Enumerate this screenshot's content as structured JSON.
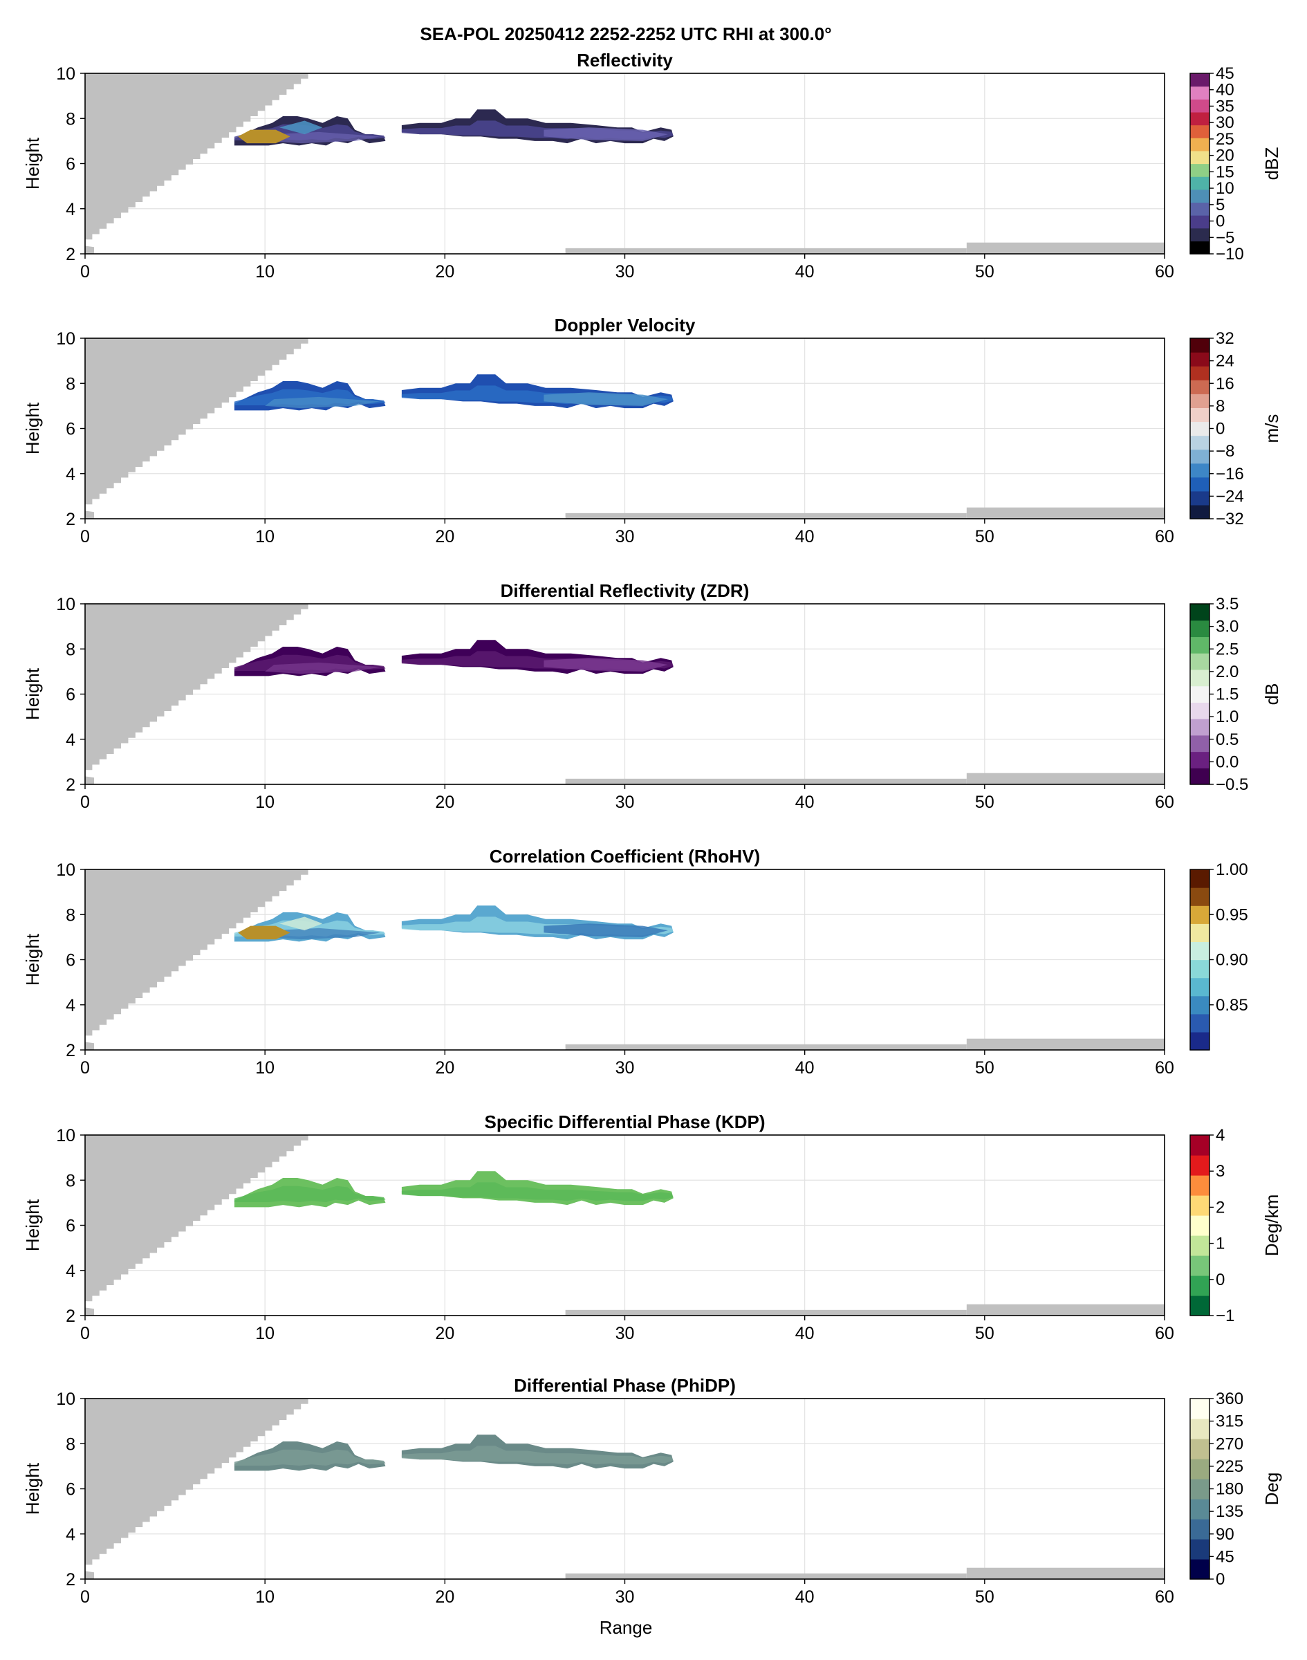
{
  "figure": {
    "title": "SEA-POL 20250412 2252-2252 UTC RHI at 300.0°",
    "xlabel": "Range",
    "ylabel": "Height"
  },
  "chart_data": [
    {
      "type": "heatmap",
      "title": "Reflectivity",
      "xlabel": "",
      "ylabel": "Height",
      "xlim": [
        0,
        60
      ],
      "ylim": [
        2,
        10
      ],
      "xticks": [
        "0",
        "10",
        "20",
        "30",
        "40",
        "50",
        "60"
      ],
      "yticks": [
        "2",
        "4",
        "6",
        "8",
        "10"
      ],
      "colorbar": {
        "label": "dBZ",
        "range": [
          -10,
          45
        ],
        "ticks": [
          "−10",
          "−5",
          "0",
          "5",
          "10",
          "15",
          "20",
          "25",
          "30",
          "35",
          "40",
          "45"
        ],
        "colors": [
          "#000000",
          "#2b2b4e",
          "#4a3d8a",
          "#5a63a8",
          "#4e8fb6",
          "#4fb3a8",
          "#8fcf86",
          "#f0e08a",
          "#f0b050",
          "#e0603a",
          "#c02040",
          "#d04a8a",
          "#e080c0",
          "#6a1a6a"
        ]
      },
      "field_colors": [
        "#2c2950",
        "#4b4590",
        "#6a63b0",
        "#4a8fc0",
        "#56b0c0"
      ],
      "grid": true
    },
    {
      "type": "heatmap",
      "title": "Doppler Velocity",
      "xlabel": "",
      "ylabel": "Height",
      "xlim": [
        0,
        60
      ],
      "ylim": [
        2,
        10
      ],
      "xticks": [
        "0",
        "10",
        "20",
        "30",
        "40",
        "50",
        "60"
      ],
      "yticks": [
        "2",
        "4",
        "6",
        "8",
        "10"
      ],
      "colorbar": {
        "label": "m/s",
        "range": [
          -32,
          32
        ],
        "ticks": [
          "−32",
          "−24",
          "−16",
          "−8",
          "0",
          "8",
          "16",
          "24",
          "32"
        ],
        "colors": [
          "#101a40",
          "#1a3a8a",
          "#1f5fb8",
          "#3d86c6",
          "#7fb0d4",
          "#b9d2e2",
          "#eaeaea",
          "#f0d0c8",
          "#e0a090",
          "#cc6a52",
          "#b03020",
          "#8a0a1a",
          "#50000a"
        ]
      },
      "field_colors": [
        "#1f4fb0",
        "#2a6cc4",
        "#4a90c8"
      ],
      "grid": true
    },
    {
      "type": "heatmap",
      "title": "Differential Reflectivity (ZDR)",
      "xlabel": "",
      "ylabel": "Height",
      "xlim": [
        0,
        60
      ],
      "ylim": [
        2,
        10
      ],
      "xticks": [
        "0",
        "10",
        "20",
        "30",
        "40",
        "50",
        "60"
      ],
      "yticks": [
        "2",
        "4",
        "6",
        "8",
        "10"
      ],
      "colorbar": {
        "label": "dB",
        "range": [
          -0.5,
          3.5
        ],
        "ticks": [
          "−0.5",
          "0.0",
          "0.5",
          "1.0",
          "1.5",
          "2.0",
          "2.5",
          "3.0",
          "3.5"
        ],
        "colors": [
          "#3f0050",
          "#6a2080",
          "#9060a8",
          "#c0a0d0",
          "#e8d8ec",
          "#f4f4f4",
          "#d8eed0",
          "#a8d8a0",
          "#60b868",
          "#2a8a40",
          "#00441b"
        ]
      },
      "field_colors": [
        "#3f0058",
        "#5a1a70",
        "#7a3a90"
      ],
      "grid": true
    },
    {
      "type": "heatmap",
      "title": "Correlation Coefficient (RhoHV)",
      "xlabel": "",
      "ylabel": "Height",
      "xlim": [
        0,
        60
      ],
      "ylim": [
        2,
        10
      ],
      "xticks": [
        "0",
        "10",
        "20",
        "30",
        "40",
        "50",
        "60"
      ],
      "yticks": [
        "2",
        "4",
        "6",
        "8",
        "10"
      ],
      "colorbar": {
        "label": "",
        "range": [
          0.8,
          1.0
        ],
        "ticks": [
          "0.85",
          "0.90",
          "0.95",
          "1.00"
        ],
        "tick_values": [
          0.85,
          0.9,
          0.95,
          1.0
        ],
        "colors": [
          "#1a2a8a",
          "#2a5ab0",
          "#3a8ac0",
          "#5ab8d0",
          "#8ad8d8",
          "#c8eee0",
          "#f0e8a0",
          "#d8a838",
          "#8a4a10",
          "#5a1a00"
        ]
      },
      "field_colors": [
        "#5aa8d0",
        "#8ad0e0",
        "#3a7ab8",
        "#c8e8d8"
      ],
      "grid": true
    },
    {
      "type": "heatmap",
      "title": "Specific Differential Phase (KDP)",
      "xlabel": "",
      "ylabel": "Height",
      "xlim": [
        0,
        60
      ],
      "ylim": [
        2,
        10
      ],
      "xticks": [
        "0",
        "10",
        "20",
        "30",
        "40",
        "50",
        "60"
      ],
      "yticks": [
        "2",
        "4",
        "6",
        "8",
        "10"
      ],
      "colorbar": {
        "label": "Deg/km",
        "range": [
          -1,
          4
        ],
        "ticks": [
          "−1",
          "0",
          "1",
          "2",
          "3",
          "4"
        ],
        "colors": [
          "#006837",
          "#31a354",
          "#78c679",
          "#c2e699",
          "#ffffcc",
          "#fed976",
          "#fd8d3c",
          "#e31a1c",
          "#a50026"
        ]
      },
      "field_colors": [
        "#6cc060",
        "#5ab858"
      ],
      "grid": true
    },
    {
      "type": "heatmap",
      "title": "Differential Phase (PhiDP)",
      "xlabel": "Range",
      "ylabel": "Height",
      "xlim": [
        0,
        60
      ],
      "ylim": [
        2,
        10
      ],
      "xticks": [
        "0",
        "10",
        "20",
        "30",
        "40",
        "50",
        "60"
      ],
      "yticks": [
        "2",
        "4",
        "6",
        "8",
        "10"
      ],
      "colorbar": {
        "label": "Deg",
        "range": [
          0,
          360
        ],
        "ticks": [
          "0",
          "45",
          "90",
          "135",
          "180",
          "225",
          "270",
          "315",
          "360"
        ],
        "colors": [
          "#00004a",
          "#1a3a7a",
          "#3a6a96",
          "#5a8a96",
          "#7a9a8a",
          "#9aaa80",
          "#c0c090",
          "#e8e8c0",
          "#fffff0"
        ]
      },
      "field_colors": [
        "#6a8a88",
        "#7a9a94"
      ],
      "grid": true
    }
  ]
}
